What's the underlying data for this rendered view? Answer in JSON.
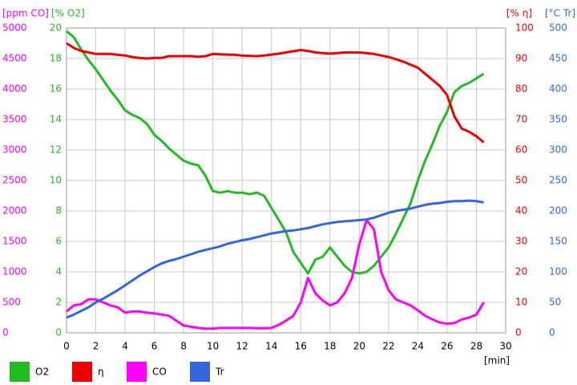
{
  "chart_data": {
    "type": "line",
    "x_label": "[min]",
    "x": [
      0,
      0.5,
      1,
      1.5,
      2,
      2.5,
      3,
      3.5,
      4,
      4.5,
      5,
      5.5,
      6,
      6.5,
      7,
      7.5,
      8,
      8.5,
      9,
      9.5,
      10,
      10.5,
      11,
      11.5,
      12,
      12.5,
      13,
      13.5,
      14,
      14.5,
      15,
      15.5,
      16,
      16.5,
      17,
      17.5,
      18,
      18.5,
      19,
      19.5,
      20,
      20.5,
      21,
      21.5,
      22,
      22.5,
      23,
      23.5,
      24,
      24.5,
      25,
      25.5,
      26,
      26.5,
      27,
      27.5,
      28,
      28.5
    ],
    "xlim": [
      0,
      30
    ],
    "xticks": [
      0,
      2,
      4,
      6,
      8,
      10,
      12,
      14,
      16,
      18,
      20,
      22,
      24,
      26,
      28,
      30
    ],
    "grid": true,
    "y_axes": [
      {
        "title": "[ppm CO]",
        "color": "#ff00ff",
        "lim": [
          0,
          5000
        ],
        "ticks": [
          0,
          500,
          1000,
          1500,
          2000,
          2500,
          3000,
          3500,
          4000,
          4500,
          5000
        ]
      },
      {
        "title": "[% O2]",
        "color": "#22bb22",
        "lim": [
          0,
          20
        ],
        "ticks": [
          0,
          2,
          4,
          6,
          8,
          10,
          12,
          14,
          16,
          18,
          20
        ]
      },
      {
        "title": "[% η]",
        "color": "#ee0000",
        "lim": [
          0,
          100
        ],
        "ticks": [
          0,
          10,
          20,
          30,
          40,
          50,
          60,
          70,
          80,
          90,
          100
        ]
      },
      {
        "title": "[°C Tr]",
        "color": "#3366dd",
        "lim": [
          0,
          500
        ],
        "ticks": [
          0,
          50,
          100,
          150,
          200,
          250,
          300,
          350,
          400,
          450,
          500
        ]
      }
    ],
    "series": [
      {
        "name": "O2",
        "color": "#22bb22",
        "axis": 1,
        "values": [
          19.8,
          19.4,
          18.6,
          17.9,
          17.3,
          16.6,
          15.9,
          15.3,
          14.6,
          14.3,
          14.1,
          13.7,
          13.0,
          12.6,
          12.1,
          11.7,
          11.3,
          11.1,
          11.0,
          10.3,
          9.3,
          9.2,
          9.3,
          9.2,
          9.2,
          9.1,
          9.2,
          9.0,
          8.2,
          7.4,
          6.6,
          5.3,
          4.6,
          3.9,
          4.8,
          5.0,
          5.6,
          5.0,
          4.4,
          4.0,
          3.9,
          4.0,
          4.4,
          5.0,
          5.6,
          6.5,
          7.5,
          8.5,
          10.0,
          11.3,
          12.4,
          13.6,
          14.5,
          15.8,
          16.2,
          16.4,
          16.7,
          17.0
        ]
      },
      {
        "name": "η",
        "color": "#ee0000",
        "axis": 2,
        "values": [
          95,
          93.5,
          92.5,
          92,
          91.5,
          91.5,
          91.5,
          91.2,
          91,
          90.5,
          90.2,
          90,
          90.2,
          90.2,
          90.8,
          90.8,
          90.8,
          90.8,
          90.6,
          90.8,
          91.5,
          91.4,
          91.3,
          91.2,
          91,
          90.9,
          90.8,
          91,
          91.3,
          91.6,
          92,
          92.4,
          92.8,
          92.5,
          92,
          91.8,
          91.6,
          91.8,
          92,
          92,
          92,
          91.8,
          91.5,
          91,
          90.5,
          89.8,
          89,
          88,
          87,
          85,
          83,
          81,
          78,
          71,
          67,
          66,
          64.5,
          62.5
        ]
      },
      {
        "name": "CO",
        "color": "#ff00ff",
        "axis": 0,
        "values": [
          350,
          450,
          470,
          550,
          550,
          500,
          450,
          420,
          330,
          350,
          350,
          330,
          320,
          300,
          280,
          200,
          120,
          100,
          80,
          70,
          70,
          80,
          80,
          80,
          80,
          80,
          75,
          75,
          80,
          130,
          200,
          280,
          500,
          900,
          650,
          530,
          450,
          500,
          650,
          900,
          1450,
          1850,
          1700,
          1000,
          700,
          550,
          500,
          450,
          370,
          280,
          220,
          170,
          150,
          160,
          220,
          250,
          300,
          500
        ]
      },
      {
        "name": "Tr",
        "color": "#3366dd",
        "axis": 3,
        "values": [
          25,
          30,
          36,
          42,
          50,
          56,
          63,
          70,
          78,
          86,
          94,
          101,
          108,
          114,
          118,
          121,
          125,
          129,
          133,
          136,
          139,
          142,
          146,
          149,
          152,
          154,
          157,
          160,
          163,
          165,
          167,
          168,
          170,
          172,
          175,
          178,
          180,
          182,
          183,
          184,
          185,
          186,
          189,
          193,
          197,
          200,
          202,
          204,
          207,
          210,
          212,
          213,
          215,
          216,
          216,
          217,
          216,
          214
        ]
      }
    ]
  }
}
